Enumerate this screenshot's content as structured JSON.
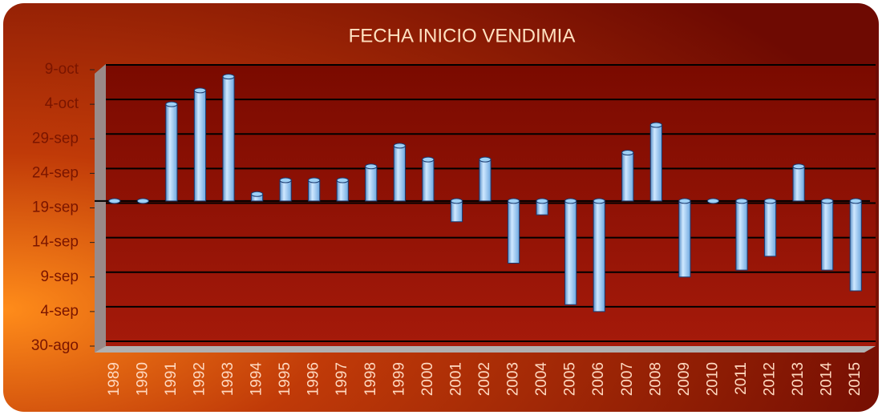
{
  "chart_data": {
    "type": "bar",
    "title": "FECHA  INICIO VENDIMIA",
    "categories": [
      "1989",
      "1990",
      "1991",
      "1992",
      "1993",
      "1994",
      "1995",
      "1996",
      "1997",
      "1998",
      "1999",
      "2000",
      "2001",
      "2002",
      "2003",
      "2004",
      "2005",
      "2006",
      "2007",
      "2008",
      "2009",
      "2010",
      "2011",
      "2012",
      "2013",
      "2014",
      "2015"
    ],
    "values": [
      263,
      263,
      277,
      279,
      281,
      264,
      266,
      266,
      266,
      268,
      271,
      269,
      260,
      269,
      254,
      261,
      248,
      247,
      270,
      274,
      252,
      263,
      253,
      255,
      268,
      253,
      250
    ],
    "baseline": 263,
    "color": "#9fd0f5",
    "ylim": [
      242,
      282
    ],
    "yticks": [
      {
        "value": 242,
        "label": "30-ago"
      },
      {
        "value": 247,
        "label": "4-sep"
      },
      {
        "value": 252,
        "label": "9-sep"
      },
      {
        "value": 257,
        "label": "14-sep"
      },
      {
        "value": 262,
        "label": "19-sep"
      },
      {
        "value": 267,
        "label": "24-sep"
      },
      {
        "value": 272,
        "label": "29-sep"
      },
      {
        "value": 277,
        "label": "4-oct"
      },
      {
        "value": 282,
        "label": "9-oct"
      }
    ],
    "grid": true
  }
}
